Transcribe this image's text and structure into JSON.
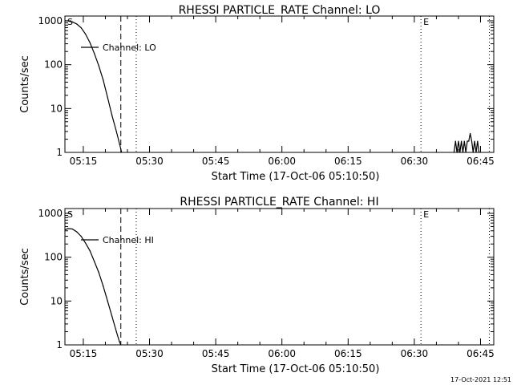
{
  "footer_timestamp": "17-Oct-2021 12:51",
  "chart_data": [
    {
      "type": "line",
      "title": "RHESSI PARTICLE_RATE Channel: LO",
      "xlabel": "Start Time (17-Oct-06 05:10:50)",
      "ylabel": "Counts/sec",
      "y_scale": "log",
      "ylim": [
        1,
        1000
      ],
      "xlim": [
        "05:10:50",
        "06:48:00"
      ],
      "x_ticks": [
        "05:15",
        "05:30",
        "05:45",
        "06:00",
        "06:15",
        "06:30",
        "06:45"
      ],
      "y_ticks": [
        "1",
        "10",
        "100",
        "1000"
      ],
      "legend": "Channel: LO",
      "markers": [
        {
          "label": "S",
          "time": "05:10:50",
          "style": "none"
        },
        {
          "label": "",
          "time": "05:23:30",
          "style": "dashed"
        },
        {
          "label": "",
          "time": "05:27:00",
          "style": "dotted"
        },
        {
          "label": "E",
          "time": "06:31:30",
          "style": "dotted"
        },
        {
          "label": "",
          "time": "06:47:00",
          "style": "dotted"
        }
      ],
      "series": [
        {
          "points": [
            [
              "05:10:50",
              1000
            ],
            [
              "05:11:30",
              1000
            ],
            [
              "05:12:30",
              950
            ],
            [
              "05:13:30",
              850
            ],
            [
              "05:14:30",
              700
            ],
            [
              "05:15:30",
              500
            ],
            [
              "05:16:30",
              320
            ],
            [
              "05:17:30",
              180
            ],
            [
              "05:18:30",
              95
            ],
            [
              "05:19:30",
              45
            ],
            [
              "05:20:30",
              18
            ],
            [
              "05:21:30",
              7
            ],
            [
              "05:22:30",
              3
            ],
            [
              "05:23:15",
              1.5
            ],
            [
              "05:23:40",
              1
            ]
          ]
        },
        {
          "points": [
            [
              "06:39:00",
              1
            ],
            [
              "06:39:20",
              1.8
            ],
            [
              "06:39:40",
              1
            ],
            [
              "06:40:00",
              1.8
            ],
            [
              "06:40:20",
              1
            ],
            [
              "06:40:40",
              1.8
            ],
            [
              "06:41:00",
              1
            ],
            [
              "06:41:20",
              1.8
            ],
            [
              "06:41:40",
              1
            ],
            [
              "06:42:00",
              1.8
            ],
            [
              "06:42:20",
              1.8
            ],
            [
              "06:42:40",
              2.7
            ],
            [
              "06:43:00",
              1.8
            ],
            [
              "06:43:20",
              1
            ],
            [
              "06:43:40",
              1.8
            ],
            [
              "06:44:00",
              1
            ],
            [
              "06:44:20",
              1.8
            ],
            [
              "06:44:40",
              1
            ]
          ]
        }
      ]
    },
    {
      "type": "line",
      "title": "RHESSI PARTICLE_RATE Channel: HI",
      "xlabel": "Start Time (17-Oct-06 05:10:50)",
      "ylabel": "Counts/sec",
      "y_scale": "log",
      "ylim": [
        1,
        1000
      ],
      "xlim": [
        "05:10:50",
        "06:48:00"
      ],
      "x_ticks": [
        "05:15",
        "05:30",
        "05:45",
        "06:00",
        "06:15",
        "06:30",
        "06:45"
      ],
      "y_ticks": [
        "1",
        "10",
        "100",
        "1000"
      ],
      "legend": "Channel: HI",
      "markers": [
        {
          "label": "S",
          "time": "05:10:50",
          "style": "none"
        },
        {
          "label": "",
          "time": "05:23:30",
          "style": "dashed"
        },
        {
          "label": "",
          "time": "05:27:00",
          "style": "dotted"
        },
        {
          "label": "E",
          "time": "06:31:30",
          "style": "dotted"
        },
        {
          "label": "",
          "time": "06:47:00",
          "style": "dotted"
        }
      ],
      "series": [
        {
          "points": [
            [
              "05:10:50",
              420
            ],
            [
              "05:11:30",
              450
            ],
            [
              "05:12:30",
              440
            ],
            [
              "05:13:30",
              380
            ],
            [
              "05:14:30",
              300
            ],
            [
              "05:15:30",
              210
            ],
            [
              "05:16:30",
              140
            ],
            [
              "05:17:30",
              80
            ],
            [
              "05:18:30",
              45
            ],
            [
              "05:19:30",
              22
            ],
            [
              "05:20:30",
              10
            ],
            [
              "05:21:30",
              4.5
            ],
            [
              "05:22:30",
              2
            ],
            [
              "05:23:10",
              1.2
            ],
            [
              "05:23:30",
              1
            ]
          ]
        }
      ]
    }
  ]
}
